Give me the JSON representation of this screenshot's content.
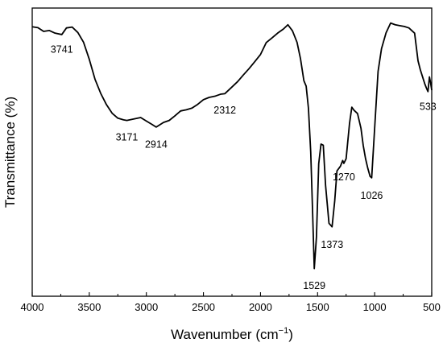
{
  "chart_data": {
    "type": "line",
    "title": "",
    "xlabel": "Wavenumber (cm",
    "xlabel_sup": "−1",
    "xlabel_end": ")",
    "ylabel": "Transmittance (%)",
    "xlim": [
      4000,
      500
    ],
    "x_reversed": true,
    "ylim": [
      0,
      100
    ],
    "y_tick_labels_shown": false,
    "grid": false,
    "legend": "none",
    "xticks": [
      4000,
      3500,
      3000,
      2500,
      2000,
      1500,
      1000,
      500
    ],
    "xtick_labels": [
      "4000",
      "3500",
      "3000",
      "2500",
      "2000",
      "1500",
      "1000",
      "500"
    ],
    "series": [
      {
        "color": "#000000",
        "x": [
          4000,
          3950,
          3900,
          3850,
          3800,
          3741,
          3700,
          3650,
          3600,
          3550,
          3500,
          3450,
          3400,
          3350,
          3300,
          3250,
          3200,
          3171,
          3100,
          3050,
          3000,
          2950,
          2914,
          2850,
          2800,
          2750,
          2700,
          2650,
          2600,
          2550,
          2500,
          2450,
          2400,
          2350,
          2312,
          2250,
          2200,
          2150,
          2100,
          2050,
          2000,
          1950,
          1900,
          1850,
          1800,
          1760,
          1720,
          1680,
          1650,
          1620,
          1600,
          1580,
          1560,
          1545,
          1529,
          1510,
          1490,
          1470,
          1450,
          1430,
          1400,
          1373,
          1350,
          1330,
          1300,
          1280,
          1270,
          1250,
          1220,
          1200,
          1180,
          1150,
          1120,
          1100,
          1080,
          1060,
          1040,
          1026,
          1000,
          970,
          940,
          900,
          860,
          820,
          780,
          740,
          700,
          650,
          620,
          600,
          580,
          560,
          545,
          533,
          520,
          510,
          500
        ],
        "y": [
          93.5,
          93.2,
          91.9,
          92.2,
          91.3,
          90.8,
          93.1,
          93.4,
          91.5,
          88.1,
          82.2,
          75.3,
          70.4,
          66.5,
          63.5,
          61.8,
          61.2,
          61.0,
          61.6,
          62.0,
          60.8,
          59.6,
          58.7,
          60.3,
          61.0,
          62.6,
          64.3,
          64.7,
          65.3,
          66.6,
          68.2,
          69.0,
          69.4,
          70.1,
          70.3,
          72.6,
          74.5,
          76.8,
          79.0,
          81.4,
          83.9,
          88.0,
          89.6,
          91.3,
          92.7,
          94.2,
          92.1,
          88.1,
          82.5,
          74.8,
          72.9,
          65.2,
          50.0,
          31.0,
          9.6,
          20.5,
          46.0,
          52.8,
          52.4,
          38.5,
          25.3,
          24.1,
          33.0,
          43.5,
          45.1,
          47.1,
          46.1,
          47.7,
          60.0,
          65.6,
          64.5,
          63.4,
          58.3,
          52.3,
          47.8,
          44.4,
          41.6,
          41.1,
          58.3,
          78.0,
          85.9,
          91.4,
          94.8,
          94.2,
          93.9,
          93.6,
          93.1,
          91.3,
          81.7,
          78.6,
          76.1,
          73.6,
          72.1,
          71.0,
          76.1,
          74.1,
          71.5
        ]
      }
    ],
    "annotations": [
      {
        "text": "3741",
        "x": 3741,
        "y": 84.5,
        "anchor": "middle"
      },
      {
        "text": "3171",
        "x": 3171,
        "y": 54.0,
        "anchor": "middle"
      },
      {
        "text": "2914",
        "x": 2914,
        "y": 51.5,
        "anchor": "middle"
      },
      {
        "text": "2312",
        "x": 2312,
        "y": 63.4,
        "anchor": "middle"
      },
      {
        "text": "1529",
        "x": 1529,
        "y": 2.5,
        "anchor": "middle"
      },
      {
        "text": "1373",
        "x": 1373,
        "y": 16.7,
        "anchor": "middle"
      },
      {
        "text": "1270",
        "x": 1270,
        "y": 40.2,
        "anchor": "middle"
      },
      {
        "text": "1026",
        "x": 1026,
        "y": 33.8,
        "anchor": "middle"
      },
      {
        "text": "533",
        "x": 533,
        "y": 64.6,
        "anchor": "middle"
      }
    ]
  }
}
